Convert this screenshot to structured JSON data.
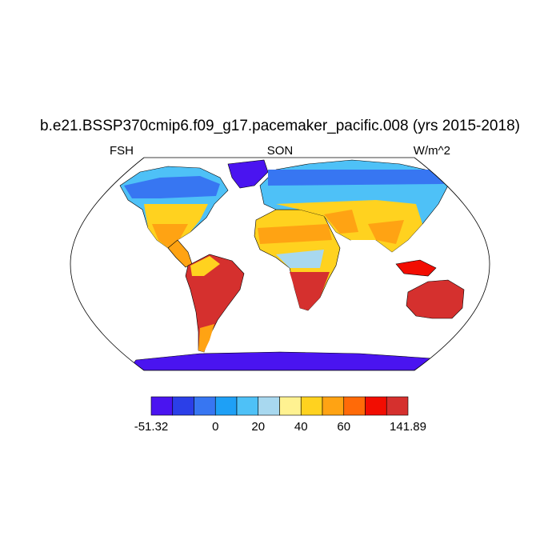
{
  "title": "b.e21.BSSP370cmip6.f09_g17.pacemaker_pacific.008 (yrs 2015-2018)",
  "variable": "FSH",
  "season": "SON",
  "units": "W/m^2",
  "colorbar": {
    "colors": [
      "#4a14f0",
      "#2b3fe8",
      "#3776f2",
      "#1ea0f6",
      "#4ec1f7",
      "#a8d8ef",
      "#fff291",
      "#ffd21f",
      "#ffa313",
      "#ff6a08",
      "#f20d02",
      "#d5302e"
    ],
    "tick_labels": [
      "-51.32",
      "0",
      "20",
      "40",
      "60",
      "141.89"
    ]
  }
}
